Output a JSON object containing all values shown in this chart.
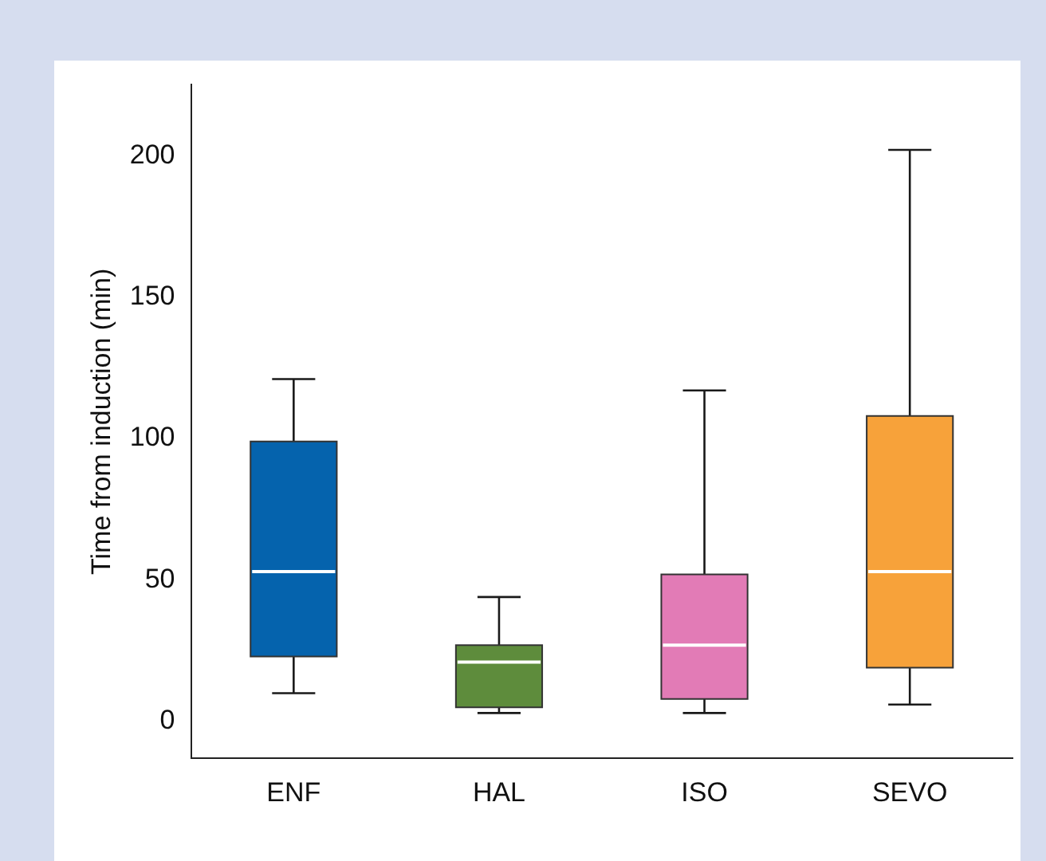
{
  "chart_data": {
    "type": "box",
    "ylabel": "Time from induction (min)",
    "categories": [
      "ENF",
      "HAL",
      "ISO",
      "SEVO"
    ],
    "colors": [
      "#0563ad",
      "#5e8c3c",
      "#e27bb6",
      "#f7a23a"
    ],
    "boxes": [
      {
        "low": 10,
        "q1": 23,
        "median": 53,
        "q3": 99,
        "high": 121
      },
      {
        "low": 3,
        "q1": 5,
        "median": 21,
        "q3": 27,
        "high": 44
      },
      {
        "low": 3,
        "q1": 8,
        "median": 27,
        "q3": 52,
        "high": 117
      },
      {
        "low": 6,
        "q1": 19,
        "median": 53,
        "q3": 108,
        "high": 202
      }
    ],
    "ylim": [
      -13,
      225
    ],
    "yticks": [
      0,
      50,
      100,
      150,
      200
    ],
    "grid": false,
    "legend": false
  }
}
